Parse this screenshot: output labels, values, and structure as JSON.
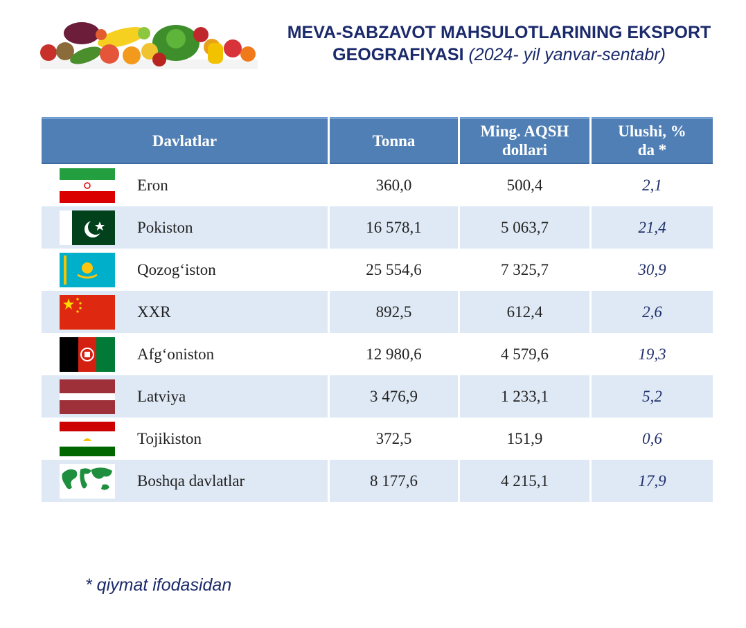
{
  "header": {
    "title_line1": "MEVA-SABZAVOT MAHSULOTLARINING EKSPORT",
    "title_line2": "GEOGRAFIYASI",
    "period": "(2024- yil yanvar-sentabr)"
  },
  "table": {
    "columns": [
      "Davlatlar",
      "Tonna",
      "Ming. AQSH dollari",
      "Ulushi, % da *"
    ],
    "rows": [
      {
        "country": "Eron",
        "flag": "iran-flag-icon",
        "tonna": "360,0",
        "usd": "500,4",
        "share": "2,1"
      },
      {
        "country": "Pokiston",
        "flag": "pakistan-flag-icon",
        "tonna": "16 578,1",
        "usd": "5 063,7",
        "share": "21,4"
      },
      {
        "country": "Qozog‘iston",
        "flag": "kazakhstan-flag-icon",
        "tonna": "25 554,6",
        "usd": "7 325,7",
        "share": "30,9"
      },
      {
        "country": "XXR",
        "flag": "china-flag-icon",
        "tonna": "892,5",
        "usd": "612,4",
        "share": "2,6"
      },
      {
        "country": "Afg‘oniston",
        "flag": "afghanistan-flag-icon",
        "tonna": "12 980,6",
        "usd": "4 579,6",
        "share": "19,3"
      },
      {
        "country": "Latviya",
        "flag": "latvia-flag-icon",
        "tonna": "3 476,9",
        "usd": "1 233,1",
        "share": "5,2"
      },
      {
        "country": "Tojikiston",
        "flag": "tajikistan-flag-icon",
        "tonna": "372,5",
        "usd": "151,9",
        "share": "0,6"
      },
      {
        "country": "Boshqa davlatlar",
        "flag": "world-map-icon",
        "tonna": "8 177,6",
        "usd": "4 215,1",
        "share": "17,9"
      }
    ]
  },
  "footnote": "* qiymat ifodasidan",
  "colors": {
    "header_bg": "#4f7fb5",
    "alt_row_bg": "#dfe9f5",
    "title_color": "#1b2a6b"
  },
  "decor": {
    "banner": "fruits-vegetables-banner-icon"
  }
}
